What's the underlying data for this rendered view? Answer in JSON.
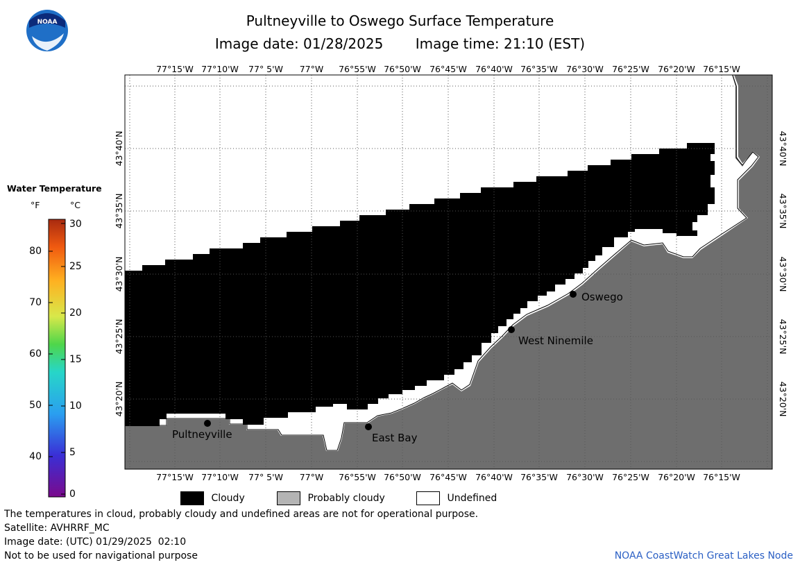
{
  "header": {
    "title": "Pultneyville to Oswego Surface Temperature",
    "image_date": "Image date: 01/28/2025",
    "image_time": "Image time: 21:10 (EST)"
  },
  "logo": {
    "text": "NOAA"
  },
  "colorbar": {
    "title": "Water Temperature",
    "unit_f": "°F",
    "unit_c": "°C",
    "f_ticks": [
      "80",
      "70",
      "60",
      "50",
      "40"
    ],
    "c_ticks": [
      "30",
      "25",
      "20",
      "15",
      "10",
      "5",
      "0"
    ]
  },
  "map": {
    "lon_labels": [
      "77°15'W",
      "77°10'W",
      "77° 5'W",
      "77°W",
      "76°55'W",
      "76°50'W",
      "76°45'W",
      "76°40'W",
      "76°35'W",
      "76°30'W",
      "76°25'W",
      "76°20'W",
      "76°15'W"
    ],
    "lat_labels": [
      "43°40'N",
      "43°35'N",
      "43°30'N",
      "43°25'N",
      "43°20'N"
    ],
    "places": [
      {
        "name": "Pultneyville"
      },
      {
        "name": "East Bay"
      },
      {
        "name": "West Ninemile"
      },
      {
        "name": "Oswego"
      }
    ]
  },
  "legend": {
    "cloudy": "Cloudy",
    "probably_cloudy": "Probably cloudy",
    "undefined": "Undefined",
    "colors": {
      "cloudy": "#000000",
      "probably_cloudy": "#b4b4b4",
      "undefined": "#ffffff",
      "land": "#6e6e6e"
    }
  },
  "notes": {
    "line1": "The temperatures in cloud, probably cloudy and undefined areas are not for operational purpose.",
    "satellite": "Satellite: AVHRRF_MC",
    "utc_date": "Image date: (UTC) 01/29/2025  02:10",
    "nav": "Not to be used for navigational purpose"
  },
  "credit": "NOAA CoastWatch Great Lakes Node"
}
